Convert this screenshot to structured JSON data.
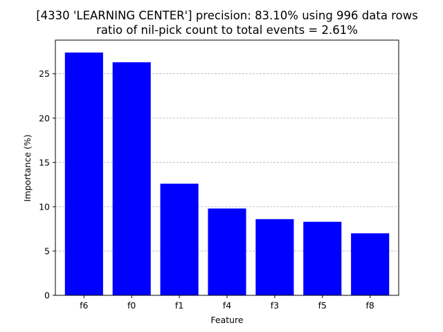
{
  "chart_data": {
    "type": "bar",
    "title": "[4330 'LEARNING CENTER'] precision: 83.10% using 996 data rows",
    "subtitle": "ratio of nil-pick count to total events = 2.61%",
    "xlabel": "Feature",
    "ylabel": "Importance (%)",
    "categories": [
      "f6",
      "f0",
      "f1",
      "f4",
      "f3",
      "f5",
      "f8"
    ],
    "values": [
      27.4,
      26.3,
      12.6,
      9.8,
      8.6,
      8.3,
      7.0
    ],
    "ylim": [
      0,
      28.8
    ],
    "yticks": [
      0,
      5,
      10,
      15,
      20,
      25
    ],
    "grid": "y-dashed",
    "bar_color": "#0000ff",
    "grid_color": "#b0b0b0"
  }
}
